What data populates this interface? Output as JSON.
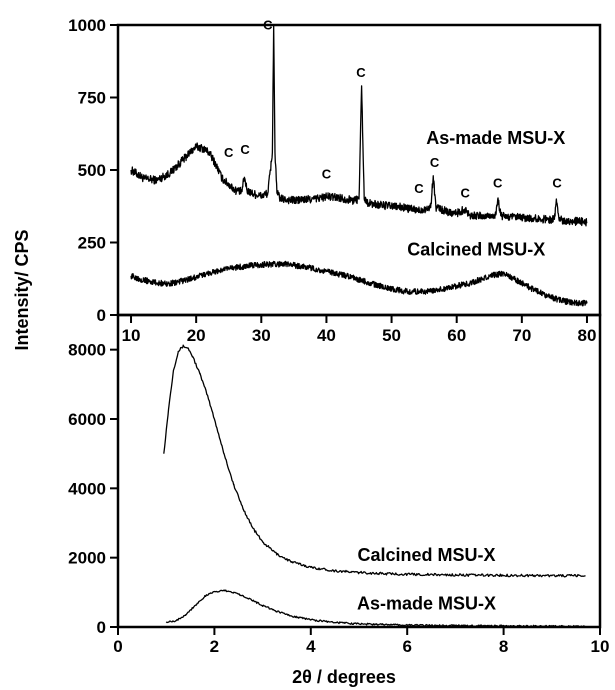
{
  "figure": {
    "ylabel": "Intensity/ CPS",
    "xlabel": "2θ / degrees"
  },
  "chart_data": [
    {
      "type": "line",
      "panel": "top",
      "xlabel": "",
      "ylabel": "Intensity/ CPS",
      "xlim": [
        8,
        82
      ],
      "ylim": [
        0,
        1000
      ],
      "xticks": [
        10,
        20,
        30,
        40,
        50,
        60,
        70,
        80
      ],
      "yticks": [
        0,
        250,
        500,
        750,
        1000
      ],
      "series": [
        {
          "name": "As-made MSU-X",
          "noise": 14,
          "x": [
            10,
            12,
            14,
            16,
            18,
            19,
            20,
            21,
            22,
            23,
            24,
            26,
            27,
            27.4,
            27.8,
            28.5,
            30,
            31,
            31.7,
            31.9,
            32.1,
            32.4,
            33,
            35,
            38,
            40,
            42,
            44,
            45,
            45.4,
            45.8,
            46.5,
            48,
            50,
            52,
            54,
            55,
            56,
            56.4,
            56.8,
            58,
            60,
            61.2,
            62,
            64,
            66,
            66.3,
            66.8,
            68,
            70,
            72,
            74,
            75,
            75.3,
            75.7,
            77,
            80
          ],
          "values": [
            500,
            470,
            465,
            490,
            535,
            560,
            580,
            575,
            560,
            520,
            470,
            430,
            425,
            475,
            430,
            420,
            410,
            420,
            560,
            1000,
            560,
            420,
            400,
            395,
            400,
            408,
            405,
            395,
            400,
            790,
            400,
            385,
            380,
            375,
            370,
            360,
            365,
            370,
            480,
            372,
            360,
            350,
            365,
            345,
            340,
            345,
            400,
            342,
            338,
            335,
            332,
            330,
            330,
            400,
            330,
            325,
            320
          ]
        },
        {
          "name": "Calcined MSU-X",
          "noise": 10,
          "x": [
            10,
            12,
            14,
            16,
            18,
            20,
            22,
            25,
            28,
            31,
            34,
            37,
            40,
            43,
            46,
            49,
            52,
            55,
            58,
            60,
            62,
            64,
            66,
            67,
            68,
            70,
            72,
            74,
            76,
            78,
            80
          ],
          "values": [
            135,
            120,
            110,
            108,
            118,
            130,
            145,
            160,
            170,
            175,
            175,
            165,
            150,
            135,
            115,
            95,
            82,
            80,
            90,
            100,
            110,
            125,
            140,
            142,
            135,
            110,
            85,
            65,
            50,
            42,
            40
          ]
        }
      ],
      "annotations": [
        {
          "text": "C",
          "x": 31,
          "y": 985
        },
        {
          "text": "C",
          "x": 25,
          "y": 545
        },
        {
          "text": "C",
          "x": 27.5,
          "y": 555
        },
        {
          "text": "C",
          "x": 45.3,
          "y": 820
        },
        {
          "text": "C",
          "x": 40,
          "y": 470
        },
        {
          "text": "C",
          "x": 54.2,
          "y": 420
        },
        {
          "text": "C",
          "x": 56.6,
          "y": 510
        },
        {
          "text": "C",
          "x": 61.3,
          "y": 405
        },
        {
          "text": "C",
          "x": 66.3,
          "y": 440
        },
        {
          "text": "C",
          "x": 75.4,
          "y": 440
        }
      ],
      "series_labels": [
        {
          "text": "As-made MSU-X",
          "x": 66,
          "y": 590
        },
        {
          "text": "Calcined MSU-X",
          "x": 63,
          "y": 205
        }
      ]
    },
    {
      "type": "line",
      "panel": "bottom",
      "xlabel": "2θ / degrees",
      "ylabel": "",
      "xlim": [
        0,
        10
      ],
      "ylim": [
        0,
        9000
      ],
      "xticks": [
        0,
        2,
        4,
        6,
        8,
        10
      ],
      "yticks": [
        0,
        2000,
        4000,
        6000,
        8000
      ],
      "series": [
        {
          "name": "Calcined MSU-X",
          "noise": 35,
          "x": [
            0.95,
            1.05,
            1.15,
            1.25,
            1.35,
            1.45,
            1.55,
            1.7,
            1.85,
            2.0,
            2.2,
            2.4,
            2.6,
            2.8,
            3.0,
            3.3,
            3.6,
            4.0,
            4.5,
            5.0,
            5.5,
            6.0,
            7.0,
            8.0,
            9.0,
            9.7
          ],
          "values": [
            5000,
            6300,
            7400,
            7950,
            8100,
            8050,
            7800,
            7300,
            6700,
            6000,
            5000,
            4100,
            3400,
            2850,
            2450,
            2100,
            1880,
            1720,
            1620,
            1570,
            1540,
            1520,
            1500,
            1490,
            1480,
            1480
          ]
        },
        {
          "name": "As-made MSU-X",
          "noise": 25,
          "x": [
            1.0,
            1.2,
            1.4,
            1.6,
            1.8,
            2.0,
            2.2,
            2.4,
            2.6,
            2.8,
            3.0,
            3.3,
            3.6,
            4.0,
            4.5,
            5.0,
            5.5,
            6.0,
            7.0,
            8.0,
            9.0,
            9.7
          ],
          "values": [
            150,
            180,
            350,
            620,
            880,
            1020,
            1050,
            1000,
            900,
            760,
            620,
            450,
            320,
            210,
            130,
            90,
            70,
            55,
            40,
            30,
            20,
            15
          ]
        }
      ],
      "series_labels": [
        {
          "text": "Calcined MSU-X",
          "x": 6.4,
          "y": 1900
        },
        {
          "text": "As-made MSU-X",
          "x": 6.4,
          "y": 500
        }
      ]
    }
  ]
}
